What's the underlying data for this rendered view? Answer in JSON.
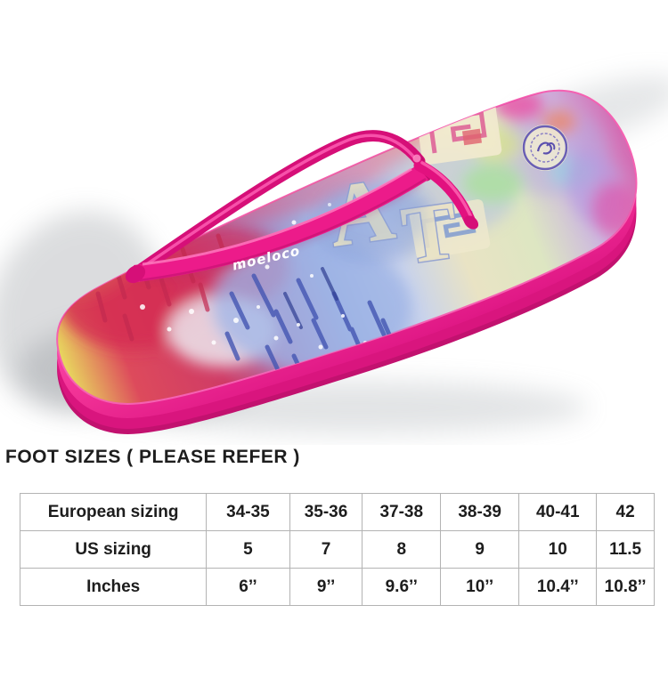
{
  "product_image": {
    "kind": "flip-flop-product-photo",
    "strap_logo": "moeloco",
    "print_letters": [
      "A",
      "T"
    ],
    "colors": {
      "sole_pink": "#fa46a8",
      "sole_pink_deep": "#d9157e",
      "strap_magenta": "#e8117e",
      "print_periwinkle": "#9db4e6",
      "print_crimson": "#d52a52",
      "print_cream": "#efe7c2"
    }
  },
  "size_chart": {
    "title": "FOOT SIZES ( PLEASE REFER )",
    "rows": [
      {
        "label": "European sizing",
        "values": [
          "34-35",
          "35-36",
          "37-38",
          "38-39",
          "40-41",
          "42"
        ]
      },
      {
        "label": "US sizing",
        "values": [
          "5",
          "7",
          "8",
          "9",
          "10",
          "11.5"
        ]
      },
      {
        "label": "Inches",
        "values": [
          "6’’",
          "9’’",
          "9.6’’",
          "10’’",
          "10.4’’",
          "10.8’’"
        ]
      }
    ]
  },
  "table_style": {
    "border_color": "#b3b3b3",
    "text_color": "#1d1d1d"
  }
}
